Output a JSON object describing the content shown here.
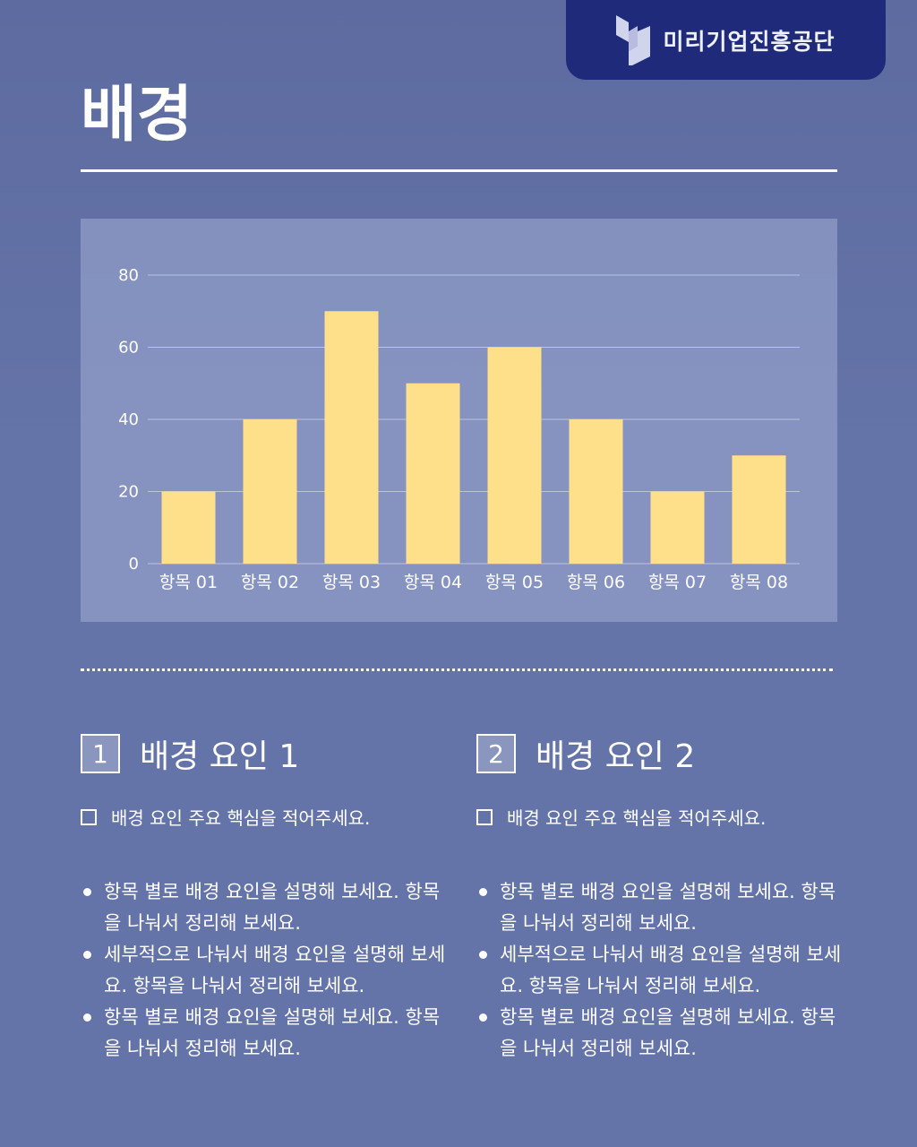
{
  "brand": {
    "name": "미리기업진흥공단",
    "logo_icon": "building-blocks-logo"
  },
  "page_title": "배경",
  "chart_data": {
    "type": "bar",
    "categories": [
      "항목 01",
      "항목 02",
      "항목 03",
      "항목 04",
      "항목 05",
      "항목 06",
      "항목 07",
      "항목 08"
    ],
    "values": [
      20,
      40,
      70,
      50,
      60,
      40,
      20,
      30
    ],
    "yticks": [
      0,
      20,
      40,
      60,
      80
    ],
    "ylim": [
      0,
      80
    ],
    "grid": true,
    "bar_color": "#ffe08a"
  },
  "sections": [
    {
      "number": "1",
      "title": "배경 요인 1",
      "key_point": "배경 요인 주요 핵심을 적어주세요.",
      "bullets": [
        "항목 별로 배경 요인을 설명해 보세요. 항목을 나눠서 정리해 보세요.",
        "세부적으로 나눠서 배경 요인을 설명해 보세요. 항목을 나눠서 정리해 보세요.",
        "항목 별로 배경 요인을 설명해 보세요. 항목을 나눠서 정리해 보세요."
      ]
    },
    {
      "number": "2",
      "title": "배경 요인 2",
      "key_point": "배경 요인 주요 핵심을 적어주세요.",
      "bullets": [
        "항목 별로 배경 요인을 설명해 보세요. 항목을 나눠서 정리해 보세요.",
        "세부적으로 나눠서 배경 요인을 설명해 보세요. 항목을 나눠서 정리해 보세요.",
        "항목 별로 배경 요인을 설명해 보세요. 항목을 나눠서 정리해 보세요."
      ]
    }
  ]
}
